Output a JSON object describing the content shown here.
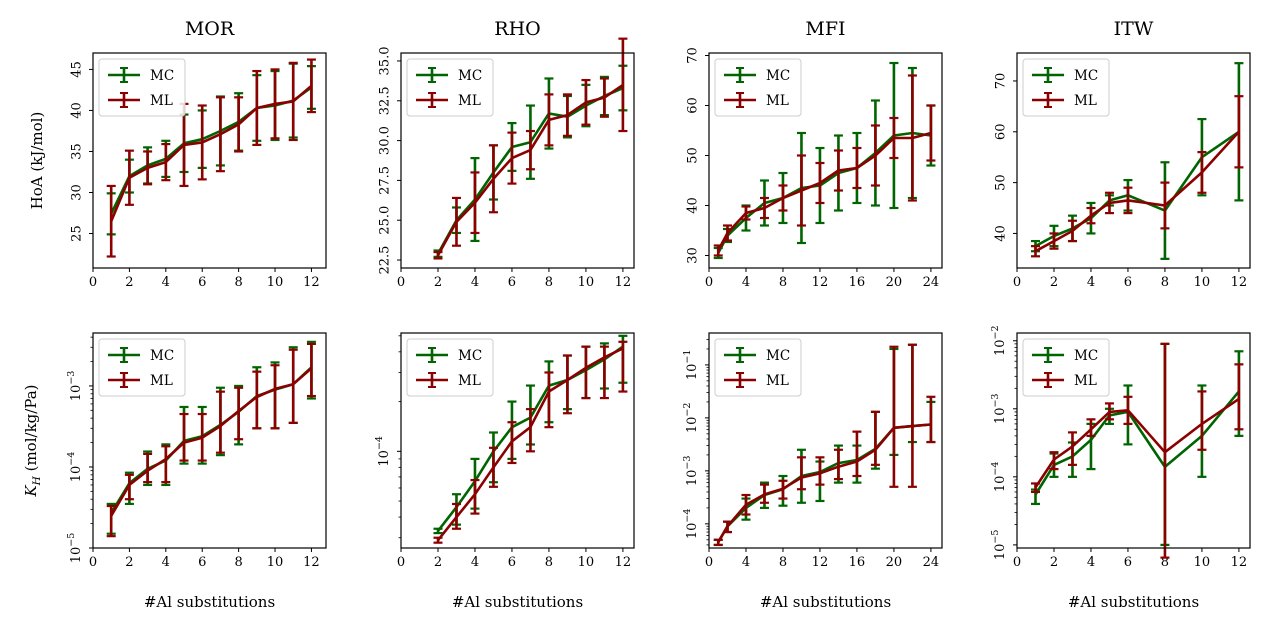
{
  "figure": {
    "colors": {
      "MC": "#006400",
      "ML": "#8b0000"
    },
    "legend_labels": [
      "MC",
      "ML"
    ],
    "xlabel": "#Al substitutions",
    "ylabel_top": "HoA (kJ/mol)",
    "ylabel_bottom_main": "K",
    "ylabel_bottom_sub": "H",
    "ylabel_bottom_unit": " (mol/kg/Pa)"
  },
  "chart_data": [
    {
      "id": "mor-hoa",
      "type": "line",
      "title": "MOR",
      "ylabel": "HoA (kJ/mol)",
      "scale": "linear",
      "xlim": [
        0,
        12.8
      ],
      "ylim": [
        20.8,
        47
      ],
      "xticks": [
        0,
        2,
        4,
        6,
        8,
        10,
        12
      ],
      "yticks": [
        25,
        30,
        35,
        40,
        45
      ],
      "x": [
        1,
        2,
        3,
        4,
        5,
        6,
        7,
        8,
        9,
        10,
        11,
        12
      ],
      "series": [
        {
          "name": "MC",
          "values": [
            27.4,
            32.0,
            33.3,
            34.1,
            36.0,
            36.5,
            37.5,
            38.6,
            40.3,
            40.6,
            41.2,
            42.8
          ],
          "errors": [
            2.5,
            2.0,
            2.2,
            2.2,
            3.5,
            3.5,
            4.2,
            3.5,
            4.0,
            4.2,
            4.5,
            2.6
          ]
        },
        {
          "name": "ML",
          "values": [
            26.5,
            31.8,
            33.0,
            33.7,
            35.8,
            36.1,
            37.1,
            38.3,
            40.3,
            40.8,
            41.1,
            43.0
          ],
          "errors": [
            4.3,
            3.3,
            2.0,
            2.2,
            5.0,
            4.5,
            4.5,
            3.3,
            4.5,
            4.2,
            4.7,
            3.2
          ]
        }
      ]
    },
    {
      "id": "rho-hoa",
      "type": "line",
      "title": "RHO",
      "ylabel": "",
      "scale": "linear",
      "xlim": [
        0,
        12.6
      ],
      "ylim": [
        22.0,
        35.5
      ],
      "xticks": [
        0,
        2,
        4,
        6,
        8,
        10,
        12
      ],
      "yticks": [
        22.5,
        25.0,
        27.5,
        30.0,
        32.5,
        35.0
      ],
      "x": [
        2,
        3,
        4,
        5,
        6,
        7,
        8,
        9,
        10,
        11,
        12
      ],
      "series": [
        {
          "name": "MC",
          "values": [
            22.9,
            25.0,
            26.3,
            28.0,
            29.6,
            29.9,
            31.7,
            31.5,
            32.2,
            32.8,
            33.3
          ],
          "errors": [
            0.2,
            0.8,
            2.6,
            1.7,
            1.5,
            2.3,
            2.2,
            1.3,
            1.3,
            1.2,
            1.4
          ]
        },
        {
          "name": "ML",
          "values": [
            22.8,
            24.9,
            26.1,
            27.6,
            28.9,
            29.4,
            31.3,
            31.6,
            32.4,
            32.7,
            33.5
          ],
          "errors": [
            0.2,
            1.5,
            1.9,
            2.1,
            1.6,
            1.2,
            1.6,
            1.3,
            1.4,
            1.2,
            2.9
          ]
        }
      ]
    },
    {
      "id": "mfi-hoa",
      "type": "line",
      "title": "MFI",
      "ylabel": "",
      "scale": "linear",
      "xlim": [
        0,
        25.2
      ],
      "ylim": [
        27.5,
        70.5
      ],
      "xticks": [
        0,
        4,
        8,
        12,
        16,
        20,
        24
      ],
      "yticks": [
        30,
        40,
        50,
        60,
        70
      ],
      "x": [
        1,
        2,
        4,
        6,
        8,
        10,
        12,
        14,
        16,
        18,
        20,
        22,
        24
      ],
      "series": [
        {
          "name": "MC",
          "values": [
            30.5,
            34.0,
            37.5,
            40.5,
            41.5,
            43.5,
            44.0,
            46.5,
            47.5,
            50.5,
            54.0,
            54.5,
            54.0
          ],
          "errors": [
            1.0,
            1.3,
            2.5,
            4.5,
            5.0,
            11.0,
            7.5,
            7.5,
            7.0,
            10.5,
            14.5,
            13.0,
            6.0
          ]
        },
        {
          "name": "ML",
          "values": [
            31.0,
            34.5,
            38.5,
            39.5,
            41.5,
            43.0,
            44.5,
            47.0,
            47.5,
            50.0,
            53.5,
            53.5,
            54.5
          ],
          "errors": [
            1.0,
            1.5,
            1.3,
            2.0,
            2.5,
            7.0,
            4.0,
            4.0,
            4.0,
            6.0,
            4.0,
            12.5,
            5.5
          ]
        }
      ]
    },
    {
      "id": "itw-hoa",
      "type": "line",
      "title": "ITW",
      "ylabel": "",
      "scale": "linear",
      "xlim": [
        0,
        12.6
      ],
      "ylim": [
        33.2,
        75.5
      ],
      "xticks": [
        0,
        2,
        4,
        6,
        8,
        10,
        12
      ],
      "yticks": [
        40,
        50,
        60,
        70
      ],
      "x": [
        1,
        2,
        3,
        4,
        5,
        6,
        8,
        10,
        12
      ],
      "series": [
        {
          "name": "MC",
          "values": [
            37.5,
            39.5,
            41.0,
            43.0,
            46.5,
            47.5,
            44.5,
            55.0,
            60.0
          ],
          "errors": [
            1.0,
            2.0,
            2.5,
            3.0,
            1.0,
            3.0,
            9.5,
            7.5,
            13.5
          ]
        },
        {
          "name": "ML",
          "values": [
            36.5,
            38.5,
            40.5,
            43.5,
            46.0,
            46.5,
            45.5,
            52.0,
            60.0
          ],
          "errors": [
            1.0,
            1.5,
            2.0,
            1.5,
            2.0,
            2.5,
            4.5,
            4.0,
            7.0
          ]
        }
      ]
    },
    {
      "id": "mor-kh",
      "type": "line",
      "title": "",
      "ylabel": "K_H (mol/kg/Pa)",
      "scale": "log",
      "xlim": [
        0,
        12.8
      ],
      "ylim": [
        1e-05,
        0.0045
      ],
      "xticks": [
        0,
        2,
        4,
        6,
        8,
        10,
        12
      ],
      "yticks": [
        1e-05,
        0.0001,
        0.001
      ],
      "yticklabels": [
        "10",
        "10",
        "10"
      ],
      "yticksups": [
        "−5",
        "−4",
        "−3"
      ],
      "x": [
        1,
        2,
        3,
        4,
        5,
        6,
        7,
        8,
        9,
        10,
        11,
        12
      ],
      "series": [
        {
          "name": "MC",
          "values": [
            2.7e-05,
            6.3e-05,
            9.5e-05,
            0.00012,
            0.00021,
            0.00024,
            0.00033,
            0.00048,
            0.00075,
            0.0009,
            0.00105,
            0.0017
          ],
          "lo": [
            1.5e-05,
            3.5e-05,
            6e-05,
            6e-05,
            0.00011,
            0.00011,
            0.00014,
            0.00019,
            0.0003,
            0.0003,
            0.00035,
            0.0007
          ],
          "hi": [
            3.5e-05,
            8.5e-05,
            0.000155,
            0.00019,
            0.00055,
            0.00055,
            0.00095,
            0.001,
            0.0017,
            0.00195,
            0.003,
            0.0035
          ]
        },
        {
          "name": "ML",
          "values": [
            2.5e-05,
            6e-05,
            9e-05,
            0.000125,
            0.0002,
            0.00023,
            0.00032,
            0.00049,
            0.00073,
            0.00092,
            0.00105,
            0.00165
          ],
          "lo": [
            1.4e-05,
            4e-05,
            6.5e-05,
            6.5e-05,
            0.00012,
            0.00012,
            0.00015,
            0.00022,
            0.0003,
            0.0003,
            0.00035,
            0.00075
          ],
          "hi": [
            3.3e-05,
            8e-05,
            0.000145,
            0.00018,
            0.00045,
            0.00045,
            0.00085,
            0.00095,
            0.0015,
            0.0018,
            0.0028,
            0.0033
          ]
        }
      ]
    },
    {
      "id": "rho-kh",
      "type": "line",
      "title": "",
      "ylabel": "",
      "scale": "log",
      "xlim": [
        0,
        12.6
      ],
      "ylim": [
        2.6e-05,
        0.00052
      ],
      "xticks": [
        0,
        2,
        4,
        6,
        8,
        10,
        12
      ],
      "yticks": [
        0.0001
      ],
      "yticklabels": [
        "10"
      ],
      "yticksups": [
        "−4"
      ],
      "x": [
        2,
        3,
        4,
        5,
        6,
        7,
        8,
        9,
        10,
        11,
        12
      ],
      "series": [
        {
          "name": "MC",
          "values": [
            3.3e-05,
            4.6e-05,
            6.6e-05,
            0.0001,
            0.00014,
            0.00016,
            0.00025,
            0.00027,
            0.00031,
            0.00036,
            0.00043
          ],
          "lo": [
            3.2e-05,
            3.6e-05,
            4.5e-05,
            6.5e-05,
            9e-05,
            0.00011,
            0.00015,
            0.00018,
            0.00021,
            0.00024,
            0.00026
          ],
          "hi": [
            3.4e-05,
            5.5e-05,
            9e-05,
            0.00013,
            0.0002,
            0.00025,
            0.00035,
            0.00038,
            0.00043,
            0.00045,
            0.0005
          ]
        },
        {
          "name": "ML",
          "values": [
            2.9e-05,
            4e-05,
            5.5e-05,
            8e-05,
            0.000115,
            0.00014,
            0.00023,
            0.00027,
            0.00032,
            0.00037,
            0.00042
          ],
          "lo": [
            2.8e-05,
            3.4e-05,
            4.2e-05,
            6.1e-05,
            8.5e-05,
            0.0001,
            0.00014,
            0.00017,
            0.00021,
            0.00021,
            0.00023
          ],
          "hi": [
            3e-05,
            4.8e-05,
            6.7e-05,
            0.000105,
            0.00015,
            0.00018,
            0.0003,
            0.00038,
            0.00043,
            0.00043,
            0.00046
          ]
        }
      ]
    },
    {
      "id": "mfi-kh",
      "type": "line",
      "title": "",
      "ylabel": "",
      "scale": "log",
      "xlim": [
        0,
        25.2
      ],
      "ylim": [
        3.5e-05,
        0.4
      ],
      "xticks": [
        0,
        4,
        8,
        12,
        16,
        20,
        24
      ],
      "yticks": [
        0.0001,
        0.001,
        0.01,
        0.1
      ],
      "yticklabels": [
        "10",
        "10",
        "10",
        "10"
      ],
      "yticksups": [
        "−4",
        "−3",
        "−2",
        "−1"
      ],
      "x": [
        1,
        2,
        4,
        6,
        8,
        10,
        12,
        14,
        16,
        18,
        20,
        22,
        24
      ],
      "series": [
        {
          "name": "MC",
          "values": [
            4.5e-05,
            9e-05,
            0.0002,
            0.00035,
            0.00045,
            0.0008,
            0.00095,
            0.0014,
            0.0016,
            0.0026,
            0.0065,
            0.007,
            0.0075
          ],
          "lo": [
            4e-05,
            7e-05,
            0.00012,
            0.0002,
            0.00022,
            0.00025,
            0.00027,
            0.0006,
            0.0006,
            0.0011,
            0.002,
            0.0035,
            0.0035
          ],
          "hi": [
            5e-05,
            0.00011,
            0.0003,
            0.0006,
            0.0008,
            0.0025,
            0.0015,
            0.003,
            0.003,
            0.013,
            0.2,
            0.24,
            0.02
          ]
        },
        {
          "name": "ML",
          "values": [
            4.5e-05,
            9e-05,
            0.00023,
            0.00036,
            0.00046,
            0.00075,
            0.0009,
            0.0012,
            0.0015,
            0.0025,
            0.0065,
            0.007,
            0.0075
          ],
          "lo": [
            4e-05,
            7e-05,
            0.00015,
            0.00025,
            0.0003,
            0.00045,
            0.00055,
            0.0007,
            0.0008,
            0.0013,
            0.0005,
            0.0005,
            0.0035
          ],
          "hi": [
            5e-05,
            0.00011,
            0.00035,
            0.00055,
            0.00065,
            0.0018,
            0.0018,
            0.0025,
            0.0055,
            0.013,
            0.22,
            0.24,
            0.025
          ]
        }
      ]
    },
    {
      "id": "itw-kh",
      "type": "line",
      "title": "",
      "ylabel": "",
      "scale": "log",
      "xlim": [
        0,
        12.6
      ],
      "ylim": [
        9e-06,
        0.013
      ],
      "xticks": [
        0,
        2,
        4,
        6,
        8,
        10,
        12
      ],
      "yticks": [
        1e-05,
        0.0001,
        0.001,
        0.01
      ],
      "yticklabels": [
        "10",
        "10",
        "10",
        "10"
      ],
      "yticksups": [
        "−5",
        "−4",
        "−3",
        "−2"
      ],
      "x": [
        1,
        2,
        3,
        4,
        5,
        6,
        8,
        10,
        12
      ],
      "series": [
        {
          "name": "MC",
          "values": [
            5.5e-05,
            0.00015,
            0.0002,
            0.00035,
            0.0008,
            0.0009,
            0.00014,
            0.0004,
            0.0018
          ],
          "lo": [
            4e-05,
            0.0001,
            0.0001,
            0.00013,
            0.0006,
            0.0003,
            1e-05,
            0.0001,
            0.0004
          ],
          "hi": [
            6.5e-05,
            0.00022,
            0.00032,
            0.0006,
            0.001,
            0.0022,
            0.009,
            0.0022,
            0.007
          ]
        },
        {
          "name": "ML",
          "values": [
            7e-05,
            0.00018,
            0.00028,
            0.0005,
            0.0009,
            0.00095,
            0.00023,
            0.0006,
            0.0014
          ],
          "lo": [
            6e-05,
            0.00013,
            0.00015,
            0.0004,
            0.0007,
            0.0006,
            6.5e-06,
            0.00025,
            0.0005
          ],
          "hi": [
            8e-05,
            0.00023,
            0.00045,
            0.0007,
            0.0012,
            0.0015,
            0.009,
            0.0018,
            0.0045
          ]
        }
      ]
    }
  ]
}
